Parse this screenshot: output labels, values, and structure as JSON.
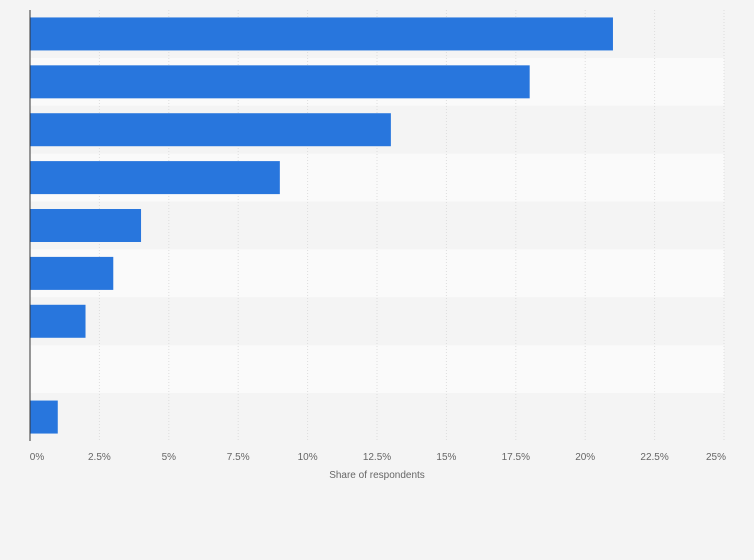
{
  "chart_data": {
    "type": "bar",
    "orientation": "horizontal",
    "categories": [
      "",
      "",
      "",
      "",
      "",
      "",
      "",
      "",
      ""
    ],
    "values": [
      21,
      18,
      13,
      9,
      4,
      3,
      2,
      0,
      1
    ],
    "xlabel": "Share of respondents",
    "xlim": [
      0,
      25
    ],
    "x_ticks": [
      "0%",
      "2.5%",
      "5%",
      "7.5%",
      "10%",
      "12.5%",
      "15%",
      "17.5%",
      "20%",
      "22.5%",
      "25%"
    ],
    "grid": true,
    "bar_color": "#2876dd",
    "band_colors": [
      "#f4f4f4",
      "#fafafa"
    ]
  }
}
